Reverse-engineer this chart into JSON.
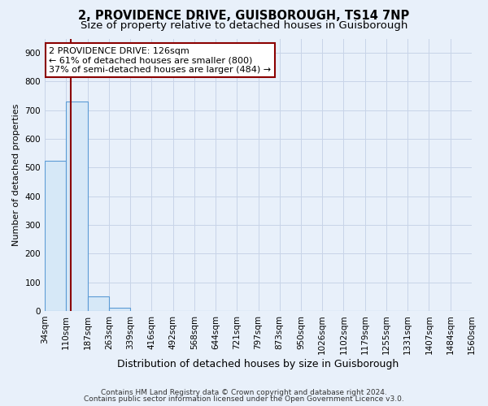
{
  "title": "2, PROVIDENCE DRIVE, GUISBOROUGH, TS14 7NP",
  "subtitle": "Size of property relative to detached houses in Guisborough",
  "xlabel": "Distribution of detached houses by size in Guisborough",
  "ylabel": "Number of detached properties",
  "bin_edges": [
    34,
    110,
    187,
    263,
    339,
    416,
    492,
    568,
    644,
    721,
    797,
    873,
    950,
    1026,
    1102,
    1179,
    1255,
    1331,
    1407,
    1484,
    1560
  ],
  "bar_heights": [
    525,
    730,
    50,
    12,
    0,
    0,
    0,
    0,
    0,
    0,
    0,
    0,
    0,
    0,
    0,
    0,
    0,
    0,
    0,
    0
  ],
  "bar_color": "#d6e8f7",
  "bar_edge_color": "#5b9bd5",
  "property_size": 126,
  "red_line_color": "#8b0000",
  "annotation_line1": "2 PROVIDENCE DRIVE: 126sqm",
  "annotation_line2": "← 61% of detached houses are smaller (800)",
  "annotation_line3": "37% of semi-detached houses are larger (484) →",
  "annotation_box_color": "#ffffff",
  "annotation_border_color": "#8b0000",
  "ylim_max": 950,
  "yticks": [
    0,
    100,
    200,
    300,
    400,
    500,
    600,
    700,
    800,
    900
  ],
  "background_color": "#e8f0fa",
  "grid_color": "#c8d4e8",
  "footer_line1": "Contains HM Land Registry data © Crown copyright and database right 2024.",
  "footer_line2": "Contains public sector information licensed under the Open Government Licence v3.0.",
  "title_fontsize": 10.5,
  "subtitle_fontsize": 9.5,
  "ylabel_fontsize": 8,
  "xlabel_fontsize": 9,
  "tick_fontsize": 7.5,
  "annotation_fontsize": 8,
  "footer_fontsize": 6.5
}
